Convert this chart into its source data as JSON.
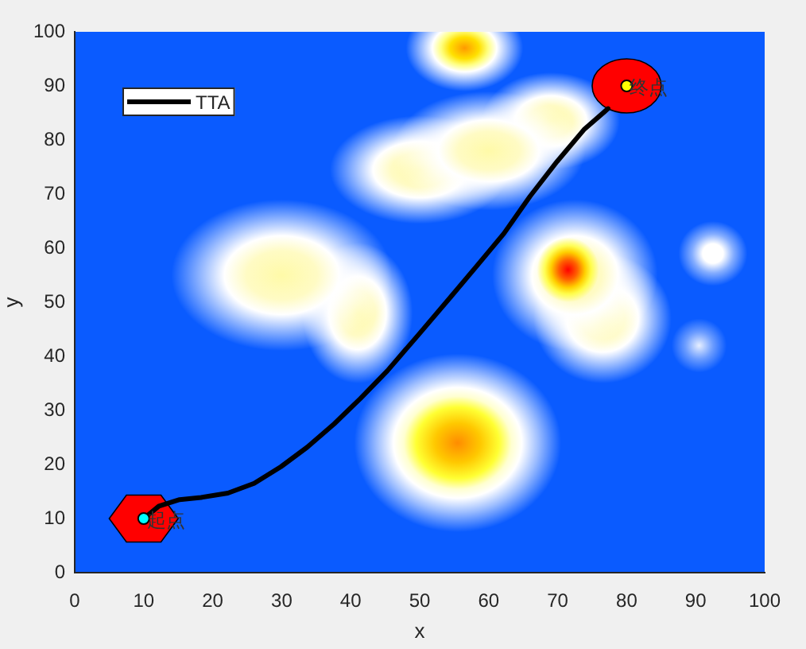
{
  "chart_data": {
    "type": "line",
    "xlabel": "x",
    "ylabel": "y",
    "xlim": [
      0,
      100
    ],
    "ylim": [
      0,
      100
    ],
    "xticks": [
      0,
      10,
      20,
      30,
      40,
      50,
      60,
      70,
      80,
      90,
      100
    ],
    "yticks": [
      0,
      10,
      20,
      30,
      40,
      50,
      60,
      70,
      80,
      90,
      100
    ],
    "legend": "top left",
    "series": [
      {
        "name": "TTA",
        "type": "line",
        "color": "#000000",
        "x": [
          10,
          12.2,
          15.2,
          18.3,
          22.2,
          26,
          29.9,
          33.7,
          37.6,
          41.4,
          45.3,
          49.9,
          54.5,
          58.4,
          62.2,
          66,
          69.9,
          73.8,
          77.3
        ],
        "values": [
          10,
          12.3,
          13.5,
          13.9,
          14.7,
          16.5,
          19.6,
          23.2,
          27.5,
          32.2,
          37.3,
          44.1,
          51,
          56.9,
          62.7,
          69.6,
          76,
          81.9,
          85.8
        ]
      },
      {
        "type": "scatter",
        "color": "#00ffff",
        "marker": "circle",
        "x": [
          10
        ],
        "values": [
          10
        ]
      },
      {
        "type": "scatter",
        "color": "#ffff00",
        "marker": "circle",
        "x": [
          80
        ],
        "values": [
          90
        ]
      }
    ],
    "annotations": [
      {
        "text": "起点",
        "x": 10,
        "y": 10
      },
      {
        "text": "终点",
        "x": 80,
        "y": 90
      }
    ]
  }
}
